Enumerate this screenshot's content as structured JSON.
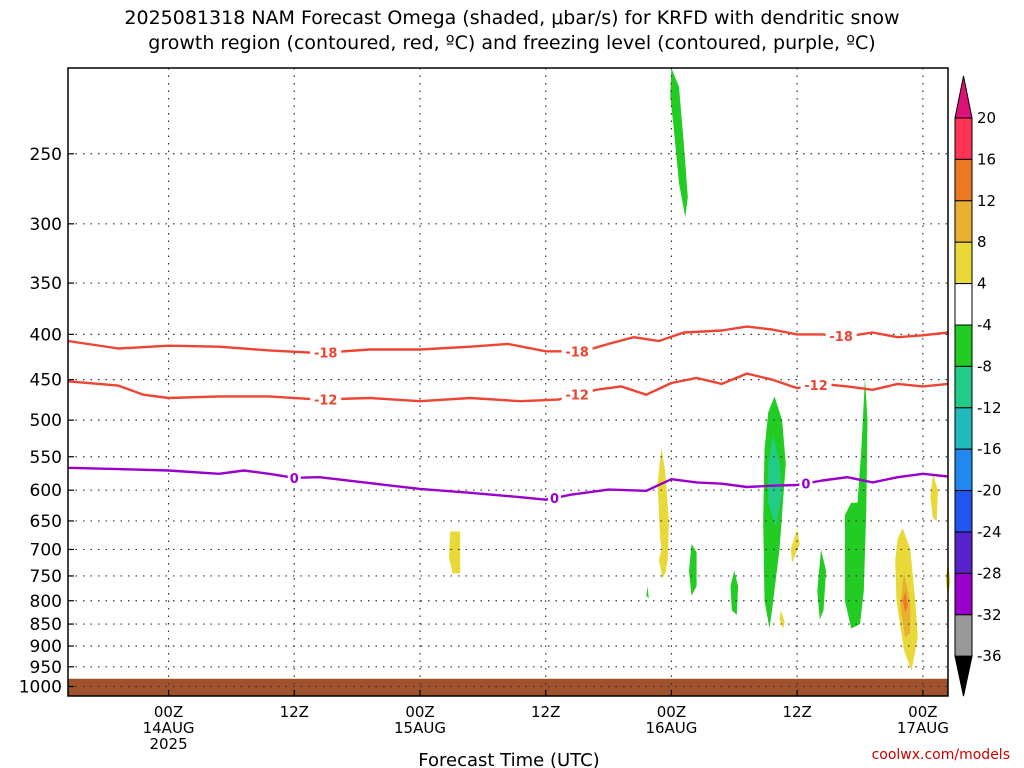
{
  "title": {
    "line1": "2025081318 NAM Forecast Omega (shaded, μbar/s) for KRFD with dendritic snow",
    "line2": "growth region (contoured, red, ºC) and freezing level (contoured, purple, ºC)"
  },
  "footer": {
    "credit": "coolwx.com/models"
  },
  "colors": {
    "frame": "#000000",
    "ground": "#a0522d",
    "dgz": "#ee4433",
    "freezing": "#9900cc",
    "grid": "#333333"
  },
  "chart_data": {
    "type": "heatmap",
    "xlabel": "Forecast Time (UTC)",
    "ylabel": "",
    "xlim_hours": [
      -8,
      62
    ],
    "ylim_hpa": [
      200,
      1025
    ],
    "y_ticks": [
      250,
      300,
      350,
      400,
      450,
      500,
      550,
      600,
      650,
      700,
      750,
      800,
      850,
      900,
      950,
      1000
    ],
    "x_ticks": [
      {
        "hour": 0,
        "l1": "00Z",
        "l2": "14AUG",
        "l3": "2025"
      },
      {
        "hour": 10,
        "l1": "12Z",
        "l2": "",
        "l3": ""
      },
      {
        "hour": 20,
        "l1": "00Z",
        "l2": "15AUG",
        "l3": ""
      },
      {
        "hour": 30,
        "l1": "12Z",
        "l2": "",
        "l3": ""
      },
      {
        "hour": 40,
        "l1": "00Z",
        "l2": "16AUG",
        "l3": ""
      },
      {
        "hour": 50,
        "l1": "12Z",
        "l2": "",
        "l3": ""
      },
      {
        "hour": 60,
        "l1": "00Z",
        "l2": "17AUG",
        "l3": ""
      }
    ],
    "colorbar": {
      "labels": [
        "20",
        "16",
        "12",
        "8",
        "4",
        "-4",
        "-8",
        "-12",
        "-16",
        "-20",
        "-24",
        "-28",
        "-32",
        "-36"
      ],
      "colors": [
        "#ff3355",
        "#ee7722",
        "#e8b030",
        "#e8d838",
        "#ffffff",
        "#22cc22",
        "#22cc88",
        "#22bbbb",
        "#2288ee",
        "#2255ee",
        "#5522cc",
        "#9900cc",
        "#999999"
      ],
      "top_arrow": "#dd1177",
      "bottom_arrow": "#000000"
    },
    "contours": [
      {
        "label": "-18",
        "color": "#ee4433",
        "label_hours": [
          12.5,
          32.5,
          53.5
        ],
        "points": [
          [
            -8,
            407
          ],
          [
            -4,
            415
          ],
          [
            0,
            412
          ],
          [
            4,
            413
          ],
          [
            8,
            417
          ],
          [
            12,
            420
          ],
          [
            16,
            416
          ],
          [
            20,
            416
          ],
          [
            24,
            413
          ],
          [
            27,
            410
          ],
          [
            30,
            418
          ],
          [
            33,
            418
          ],
          [
            35,
            410
          ],
          [
            37,
            403
          ],
          [
            39,
            407
          ],
          [
            41,
            398
          ],
          [
            44,
            396
          ],
          [
            46,
            392
          ],
          [
            48,
            395
          ],
          [
            50,
            400
          ],
          [
            52,
            400
          ],
          [
            54,
            402
          ],
          [
            56,
            398
          ],
          [
            58,
            403
          ],
          [
            60,
            401
          ],
          [
            62,
            398
          ]
        ]
      },
      {
        "label": "-12",
        "color": "#ee4433",
        "label_hours": [
          12.5,
          32.5,
          51.5
        ],
        "points": [
          [
            -8,
            452
          ],
          [
            -4,
            457
          ],
          [
            -2,
            468
          ],
          [
            0,
            472
          ],
          [
            4,
            470
          ],
          [
            8,
            470
          ],
          [
            12,
            474
          ],
          [
            16,
            472
          ],
          [
            20,
            476
          ],
          [
            24,
            472
          ],
          [
            28,
            476
          ],
          [
            31,
            474
          ],
          [
            34,
            462
          ],
          [
            36,
            458
          ],
          [
            38,
            468
          ],
          [
            40,
            454
          ],
          [
            42,
            448
          ],
          [
            44,
            455
          ],
          [
            46,
            443
          ],
          [
            48,
            450
          ],
          [
            50,
            460
          ],
          [
            52,
            455
          ],
          [
            54,
            458
          ],
          [
            56,
            462
          ],
          [
            58,
            455
          ],
          [
            60,
            458
          ],
          [
            62,
            455
          ]
        ]
      },
      {
        "label": "0",
        "color": "#9900cc",
        "label_hours": [
          10,
          30.7,
          50.7
        ],
        "points": [
          [
            -8,
            566
          ],
          [
            -4,
            568
          ],
          [
            0,
            570
          ],
          [
            4,
            575
          ],
          [
            6,
            570
          ],
          [
            8,
            575
          ],
          [
            10,
            581
          ],
          [
            12,
            580
          ],
          [
            16,
            589
          ],
          [
            20,
            598
          ],
          [
            24,
            604
          ],
          [
            28,
            611
          ],
          [
            30,
            615
          ],
          [
            32,
            607
          ],
          [
            35,
            599
          ],
          [
            38,
            601
          ],
          [
            40,
            583
          ],
          [
            42,
            588
          ],
          [
            44,
            590
          ],
          [
            46,
            595
          ],
          [
            48,
            593
          ],
          [
            50,
            592
          ],
          [
            52,
            585
          ],
          [
            54,
            580
          ],
          [
            56,
            588
          ],
          [
            58,
            580
          ],
          [
            60,
            575
          ],
          [
            62,
            579
          ]
        ]
      }
    ],
    "omega_features": [
      {
        "color": "#22cc22",
        "poly": [
          [
            40,
            200
          ],
          [
            40.6,
            210
          ],
          [
            41,
            245
          ],
          [
            41.3,
            280
          ],
          [
            41.1,
            295
          ],
          [
            40.6,
            270
          ],
          [
            40.2,
            235
          ],
          [
            39.9,
            215
          ]
        ]
      },
      {
        "color": "#e8d838",
        "poly": [
          [
            22.4,
            668
          ],
          [
            23.2,
            668
          ],
          [
            23.2,
            745
          ],
          [
            22.6,
            745
          ],
          [
            22.3,
            715
          ]
        ]
      },
      {
        "color": "#e8d838",
        "poly": [
          [
            39.2,
            537
          ],
          [
            39.5,
            570
          ],
          [
            39.8,
            650
          ],
          [
            39.7,
            720
          ],
          [
            39.5,
            745
          ],
          [
            39.1,
            680
          ],
          [
            38.9,
            590
          ]
        ]
      },
      {
        "color": "#22cc22",
        "poly": [
          [
            38.1,
            770
          ],
          [
            38.2,
            795
          ],
          [
            38.0,
            790
          ]
        ]
      },
      {
        "color": "#22cc22",
        "poly": [
          [
            41.6,
            690
          ],
          [
            42,
            705
          ],
          [
            42,
            770
          ],
          [
            41.6,
            790
          ],
          [
            41.4,
            740
          ]
        ]
      },
      {
        "color": "#22cc22",
        "poly": [
          [
            45,
            740
          ],
          [
            45.3,
            770
          ],
          [
            45.2,
            830
          ],
          [
            44.8,
            820
          ],
          [
            44.7,
            770
          ]
        ]
      },
      {
        "color": "#22cc22",
        "poly": [
          [
            48.2,
            470
          ],
          [
            48.8,
            500
          ],
          [
            49.1,
            560
          ],
          [
            48.6,
            700
          ],
          [
            48,
            820
          ],
          [
            47.8,
            860
          ],
          [
            47.4,
            800
          ],
          [
            47.3,
            650
          ],
          [
            47.4,
            540
          ],
          [
            47.7,
            490
          ]
        ]
      },
      {
        "color": "#22cc88",
        "poly": [
          [
            48.1,
            520
          ],
          [
            48.6,
            560
          ],
          [
            48.8,
            605
          ],
          [
            48.3,
            660
          ],
          [
            47.7,
            620
          ],
          [
            47.7,
            560
          ]
        ]
      },
      {
        "color": "#e8d838",
        "poly": [
          [
            48.7,
            820
          ],
          [
            49,
            845
          ],
          [
            48.9,
            860
          ],
          [
            48.6,
            840
          ]
        ]
      },
      {
        "color": "#e8d838",
        "poly": [
          [
            50,
            664
          ],
          [
            50.2,
            690
          ],
          [
            49.6,
            725
          ],
          [
            49.5,
            700
          ]
        ]
      },
      {
        "color": "#22cc22",
        "poly": [
          [
            51.9,
            700
          ],
          [
            52.3,
            740
          ],
          [
            52.1,
            820
          ],
          [
            51.8,
            840
          ],
          [
            51.6,
            780
          ]
        ]
      },
      {
        "color": "#22cc22",
        "poly": [
          [
            55.4,
            448
          ],
          [
            55.6,
            500
          ],
          [
            55.5,
            630
          ],
          [
            55.3,
            780
          ],
          [
            55,
            850
          ],
          [
            54.3,
            860
          ],
          [
            53.8,
            800
          ],
          [
            53.8,
            640
          ],
          [
            54.3,
            620
          ],
          [
            54.8,
            620
          ],
          [
            55.1,
            540
          ]
        ]
      },
      {
        "color": "#e8d838",
        "poly": [
          [
            58.4,
            662
          ],
          [
            59,
            700
          ],
          [
            59.4,
            800
          ],
          [
            59.6,
            880
          ],
          [
            59.1,
            960
          ],
          [
            58.5,
            910
          ],
          [
            57.9,
            800
          ],
          [
            57.8,
            720
          ],
          [
            58,
            680
          ]
        ]
      },
      {
        "color": "#e8b030",
        "poly": [
          [
            58.5,
            745
          ],
          [
            59,
            800
          ],
          [
            59,
            870
          ],
          [
            58.6,
            880
          ],
          [
            58.2,
            810
          ]
        ]
      },
      {
        "color": "#ee7722",
        "poly": [
          [
            58.6,
            780
          ],
          [
            58.8,
            810
          ],
          [
            58.6,
            825
          ],
          [
            58.4,
            800
          ]
        ]
      },
      {
        "color": "#e8d838",
        "poly": [
          [
            60.8,
            575
          ],
          [
            61.2,
            600
          ],
          [
            61.1,
            650
          ],
          [
            60.8,
            645
          ],
          [
            60.6,
            610
          ]
        ]
      },
      {
        "color": "#e8d838",
        "poly": [
          [
            39.2,
            700
          ],
          [
            39.6,
            740
          ],
          [
            39.3,
            755
          ],
          [
            39.0,
            720
          ]
        ]
      },
      {
        "color": "#e8d838",
        "poly": [
          [
            62,
            725
          ],
          [
            62.2,
            760
          ],
          [
            62,
            790
          ],
          [
            61.8,
            755
          ]
        ]
      }
    ],
    "terrain": {
      "color": "#a0522d",
      "top_hpa": 980
    }
  }
}
